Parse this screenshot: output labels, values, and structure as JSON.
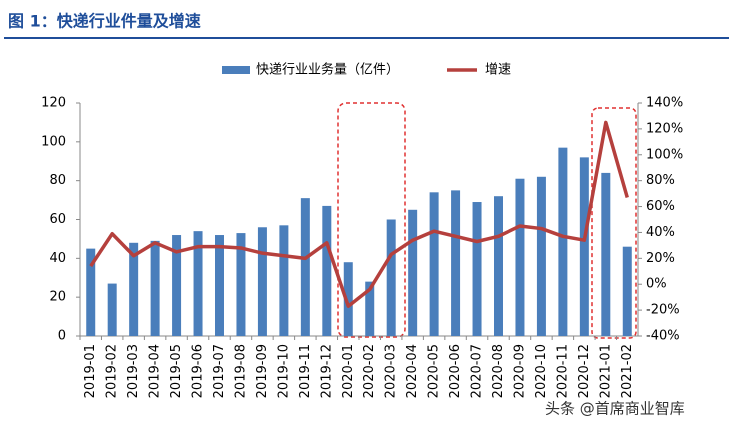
{
  "chart_data": {
    "type": "bar-line",
    "title": "图 1：快递行业件量及增速",
    "watermark": "头条 @首席商业智库",
    "categories": [
      "2019-01",
      "2019-02",
      "2019-03",
      "2019-04",
      "2019-05",
      "2019-06",
      "2019-07",
      "2019-08",
      "2019-09",
      "2019-10",
      "2019-11",
      "2019-12",
      "2020-01",
      "2020-02",
      "2020-03",
      "2020-04",
      "2020-05",
      "2020-06",
      "2020-07",
      "2020-08",
      "2020-09",
      "2020-10",
      "2020-11",
      "2020-12",
      "2021-01",
      "2021-02"
    ],
    "series": [
      {
        "name": "快递行业业务量（亿件）",
        "type": "bar",
        "color": "#4a7ebb",
        "values": [
          45,
          27,
          48,
          49,
          52,
          54,
          52,
          53,
          56,
          57,
          71,
          67,
          38,
          28,
          60,
          65,
          74,
          75,
          69,
          72,
          81,
          82,
          97,
          92,
          84,
          46
        ]
      },
      {
        "name": "增速",
        "type": "line",
        "axis": "y2",
        "color": "#b5403d",
        "values": [
          14,
          39,
          22,
          32,
          25,
          29,
          29,
          28,
          24,
          22,
          20,
          32,
          -17,
          -4,
          23,
          34,
          41,
          37,
          33,
          37,
          45,
          43,
          37,
          34,
          125,
          67
        ]
      }
    ],
    "ylim": [
      0,
      120
    ],
    "yticks": [
      0,
      20,
      40,
      60,
      80,
      100,
      120
    ],
    "y2lim": [
      -40,
      140
    ],
    "y2ticks": [
      {
        "value": -40,
        "label": "-40%"
      },
      {
        "value": -20,
        "label": "-20%"
      },
      {
        "value": 0,
        "label": "0%"
      },
      {
        "value": 20,
        "label": "20%"
      },
      {
        "value": 40,
        "label": "40%"
      },
      {
        "value": 60,
        "label": "60%"
      },
      {
        "value": 80,
        "label": "80%"
      },
      {
        "value": 100,
        "label": "100%"
      },
      {
        "value": 120,
        "label": "120%"
      },
      {
        "value": 140,
        "label": "140%"
      }
    ]
  }
}
